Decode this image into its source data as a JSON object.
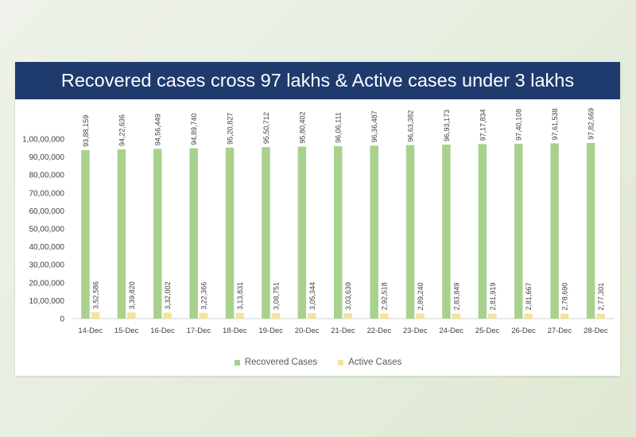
{
  "chart_data": {
    "type": "bar",
    "title": "Recovered cases cross 97 lakhs & Active cases under 3 lakhs",
    "categories": [
      "14-Dec",
      "15-Dec",
      "16-Dec",
      "17-Dec",
      "18-Dec",
      "19-Dec",
      "20-Dec",
      "21-Dec",
      "22-Dec",
      "23-Dec",
      "24-Dec",
      "25-Dec",
      "26-Dec",
      "27-Dec",
      "28-Dec"
    ],
    "series": [
      {
        "name": "Recovered Cases",
        "color": "#a9d18e",
        "values": [
          9388159,
          9422636,
          9456449,
          9489740,
          9520827,
          9550712,
          9580402,
          9606111,
          9636487,
          9663382,
          9693173,
          9717834,
          9740108,
          9761538,
          9782669
        ],
        "labels": [
          "93,88,159",
          "94,22,636",
          "94,56,449",
          "94,89,740",
          "95,20,827",
          "95,50,712",
          "95,80,402",
          "96,06,111",
          "96,36,487",
          "96,63,382",
          "96,93,173",
          "97,17,834",
          "97,40,108",
          "97,61,538",
          "97,82,669"
        ]
      },
      {
        "name": "Active Cases",
        "color": "#f2e49b",
        "values": [
          352586,
          339820,
          332002,
          322366,
          313831,
          308751,
          305344,
          303639,
          292518,
          289240,
          283849,
          281919,
          281667,
          278690,
          277301
        ],
        "labels": [
          "3,52,586",
          "3,39,820",
          "3,32,002",
          "3,22,366",
          "3,13,831",
          "3,08,751",
          "3,05,344",
          "3,03,639",
          "2,92,518",
          "2,89,240",
          "2,83,849",
          "2,81,919",
          "2,81,667",
          "2,78,690",
          "2,77,301"
        ]
      }
    ],
    "y_ticks": [
      0,
      1000000,
      2000000,
      3000000,
      4000000,
      5000000,
      6000000,
      7000000,
      8000000,
      9000000,
      10000000
    ],
    "y_tick_labels": [
      "0",
      "10,00,000",
      "20,00,000",
      "30,00,000",
      "40,00,000",
      "50,00,000",
      "60,00,000",
      "70,00,000",
      "80,00,000",
      "90,00,000",
      "1,00,00,000"
    ],
    "ylim": [
      0,
      10000000
    ],
    "xlabel": "",
    "ylabel": "",
    "grid": false,
    "legend_position": "bottom"
  }
}
